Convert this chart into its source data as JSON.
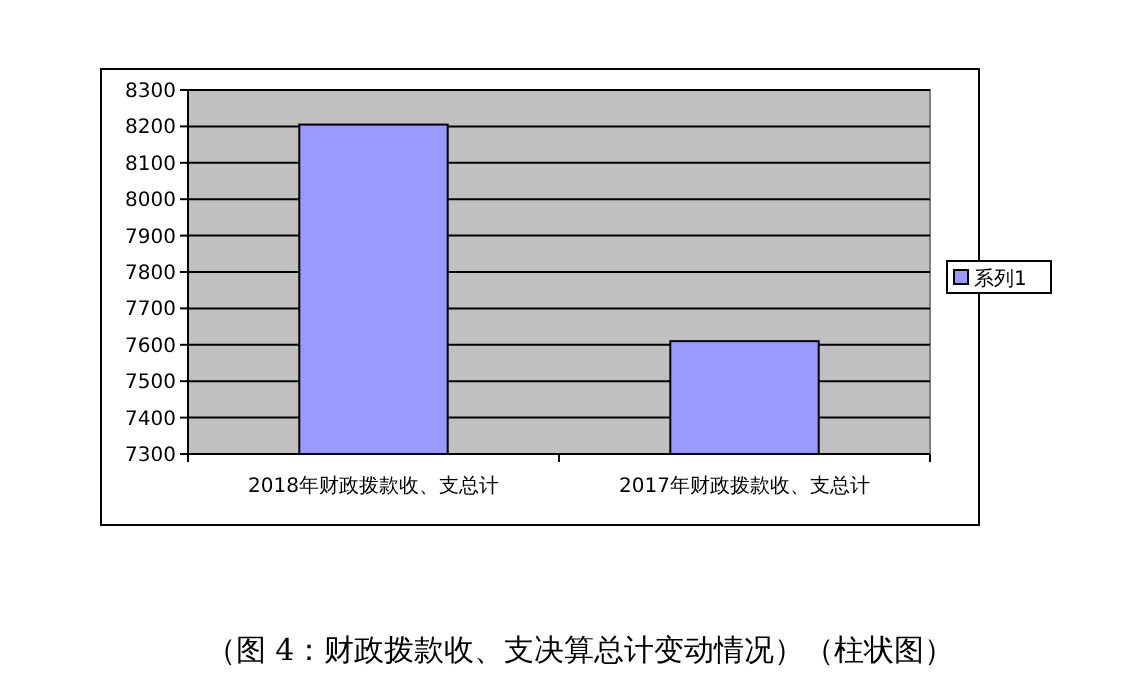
{
  "chart_data": {
    "type": "bar",
    "categories": [
      "2018年财政拨款收、支总计",
      "2017年财政拨款收、支总计"
    ],
    "series": [
      {
        "name": "系列1",
        "color": "#9999ff",
        "values": [
          8205,
          7610
        ]
      }
    ],
    "ylim": [
      7300,
      8300
    ],
    "yticks": [
      7300,
      7400,
      7500,
      7600,
      7700,
      7800,
      7900,
      8000,
      8100,
      8200,
      8300
    ],
    "grid": "y",
    "legend": "right",
    "annotations": [
      "（图 4：财政拨款收、支决算总计变动情况）（柱状图）"
    ]
  }
}
